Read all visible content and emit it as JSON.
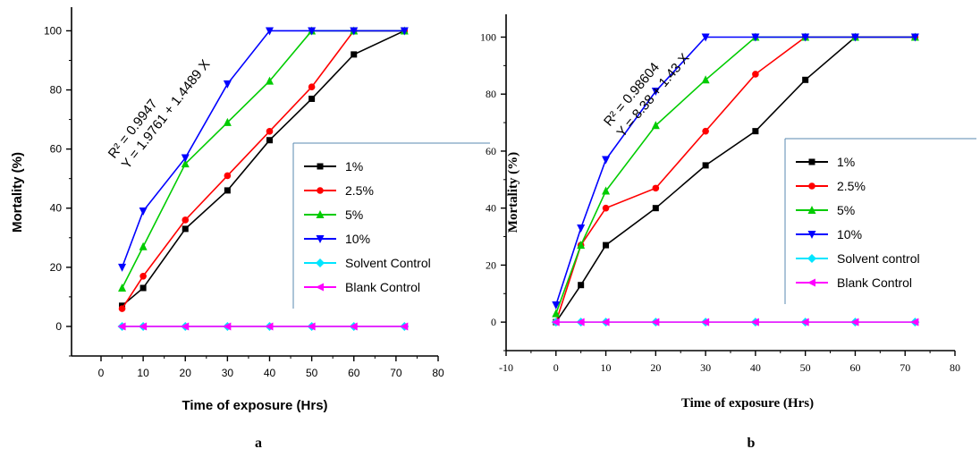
{
  "chart_data": [
    {
      "type": "line",
      "panel_label": "a",
      "xlabel": "Time of exposure (Hrs)",
      "ylabel": "Mortality (%)",
      "xlim": [
        -7,
        80
      ],
      "ylim": [
        -10,
        108
      ],
      "xticks": [
        0,
        10,
        20,
        30,
        40,
        50,
        60,
        70,
        80
      ],
      "yticks": [
        0,
        20,
        40,
        60,
        80,
        100
      ],
      "annotation": [
        "R² = 0.9947",
        "Y = 1.9761 + 1.4489 X"
      ],
      "legend_position": "right",
      "series": [
        {
          "name": "1%",
          "color": "#000000",
          "marker": "square",
          "x": [
            5,
            10,
            20,
            30,
            40,
            50,
            60,
            72
          ],
          "y": [
            7,
            13,
            33,
            46,
            63,
            77,
            92,
            100
          ]
        },
        {
          "name": "2.5%",
          "color": "#ff0000",
          "marker": "circle",
          "x": [
            5,
            10,
            20,
            30,
            40,
            50,
            60,
            72
          ],
          "y": [
            6,
            17,
            36,
            51,
            66,
            81,
            100,
            100
          ]
        },
        {
          "name": "5%",
          "color": "#00cc00",
          "marker": "triangle-up",
          "x": [
            5,
            10,
            20,
            30,
            40,
            50,
            60,
            72
          ],
          "y": [
            13,
            27,
            55,
            69,
            83,
            100,
            100,
            100
          ]
        },
        {
          "name": "10%",
          "color": "#0000ff",
          "marker": "triangle-down",
          "x": [
            5,
            10,
            20,
            30,
            40,
            50,
            60,
            72
          ],
          "y": [
            20,
            39,
            57,
            82,
            100,
            100,
            100,
            100
          ]
        },
        {
          "name": "Solvent Control",
          "color": "#00e5ff",
          "marker": "diamond",
          "x": [
            5,
            10,
            20,
            30,
            40,
            50,
            60,
            72
          ],
          "y": [
            0,
            0,
            0,
            0,
            0,
            0,
            0,
            0
          ]
        },
        {
          "name": "Blank Control",
          "color": "#ff00ff",
          "marker": "triangle-left",
          "x": [
            5,
            10,
            20,
            30,
            40,
            50,
            60,
            72
          ],
          "y": [
            0,
            0,
            0,
            0,
            0,
            0,
            0,
            0
          ]
        }
      ]
    },
    {
      "type": "line",
      "panel_label": "b",
      "xlabel": "Time of exposure (Hrs)",
      "ylabel": "Mortality (%)",
      "xlim": [
        -10,
        80
      ],
      "ylim": [
        -10,
        108
      ],
      "xticks": [
        -10,
        0,
        10,
        20,
        30,
        40,
        50,
        60,
        70,
        80
      ],
      "yticks": [
        0,
        20,
        40,
        60,
        80,
        100
      ],
      "annotation": [
        "R² = 0.98604",
        "Y = 8.38 + 1.43 X"
      ],
      "legend_position": "right",
      "series": [
        {
          "name": "1%",
          "color": "#000000",
          "marker": "square",
          "x": [
            0,
            5,
            10,
            20,
            30,
            40,
            50,
            60,
            72
          ],
          "y": [
            0,
            13,
            27,
            40,
            55,
            67,
            85,
            100,
            100
          ]
        },
        {
          "name": "2.5%",
          "color": "#ff0000",
          "marker": "circle",
          "x": [
            0,
            5,
            10,
            20,
            30,
            40,
            50,
            60,
            72
          ],
          "y": [
            0,
            27,
            40,
            47,
            67,
            87,
            100,
            100,
            100
          ]
        },
        {
          "name": "5%",
          "color": "#00cc00",
          "marker": "triangle-up",
          "x": [
            0,
            5,
            10,
            20,
            30,
            40,
            50,
            60,
            72
          ],
          "y": [
            3,
            27,
            46,
            69,
            85,
            100,
            100,
            100,
            100
          ]
        },
        {
          "name": "10%",
          "color": "#0000ff",
          "marker": "triangle-down",
          "x": [
            0,
            5,
            10,
            20,
            30,
            40,
            50,
            60,
            72
          ],
          "y": [
            6,
            33,
            57,
            81,
            100,
            100,
            100,
            100,
            100
          ]
        },
        {
          "name": "Solvent control",
          "color": "#00e5ff",
          "marker": "diamond",
          "x": [
            0,
            5,
            10,
            20,
            30,
            40,
            50,
            60,
            72
          ],
          "y": [
            0,
            0,
            0,
            0,
            0,
            0,
            0,
            0,
            0
          ]
        },
        {
          "name": "Blank Control",
          "color": "#ff00ff",
          "marker": "triangle-left",
          "x": [
            0,
            5,
            10,
            20,
            30,
            40,
            50,
            60,
            72
          ],
          "y": [
            0,
            0,
            0,
            0,
            0,
            0,
            0,
            0,
            0
          ]
        }
      ]
    }
  ]
}
